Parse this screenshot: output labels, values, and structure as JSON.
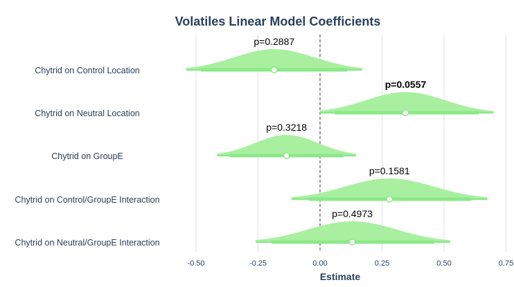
{
  "chart_data": {
    "type": "halfeye",
    "title": "Volatiles Linear Model Coefficients",
    "xlabel": "Estimate",
    "ylabel": "",
    "xlim": [
      -0.6,
      0.76
    ],
    "xticks": [
      -0.5,
      -0.25,
      0.0,
      0.25,
      0.5,
      0.75
    ],
    "xtick_labels": [
      "-0.50",
      "-0.25",
      "0.00",
      "0.25",
      "0.50",
      "0.75"
    ],
    "reference_line": 0,
    "grid": "vertical",
    "colors": {
      "density_fill": "#a8f0a0",
      "interval": "#8ce888",
      "point_fill": "#ffffff",
      "title_text": "#2a3f5a",
      "gridline": "#e0e0e0"
    },
    "terms": [
      {
        "label": "Chytrid on Control Location",
        "estimate": -0.185,
        "interval_outer": [
          -0.54,
          0.17
        ],
        "interval_inner": [
          -0.48,
          0.11
        ],
        "p_label": "p=0.2887",
        "significant": false
      },
      {
        "label": "Chytrid on Neutral Location",
        "estimate": 0.345,
        "interval_outer": [
          0.0,
          0.7
        ],
        "interval_inner": [
          0.06,
          0.64
        ],
        "p_label": "p=0.0557",
        "significant": true
      },
      {
        "label": "Chytrid on GroupE",
        "estimate": -0.135,
        "interval_outer": [
          -0.415,
          0.145
        ],
        "interval_inner": [
          -0.365,
          0.095
        ],
        "p_label": "p=0.3218",
        "significant": false
      },
      {
        "label": "Chytrid on Control/GroupE Interaction",
        "estimate": 0.28,
        "interval_outer": [
          -0.115,
          0.675
        ],
        "interval_inner": [
          -0.045,
          0.61
        ],
        "p_label": "p=0.1581",
        "significant": false
      },
      {
        "label": "Chytrid on Neutral/GroupE Interaction",
        "estimate": 0.13,
        "interval_outer": [
          -0.26,
          0.525
        ],
        "interval_inner": [
          -0.195,
          0.46
        ],
        "p_label": "p=0.4973",
        "significant": false
      }
    ]
  }
}
